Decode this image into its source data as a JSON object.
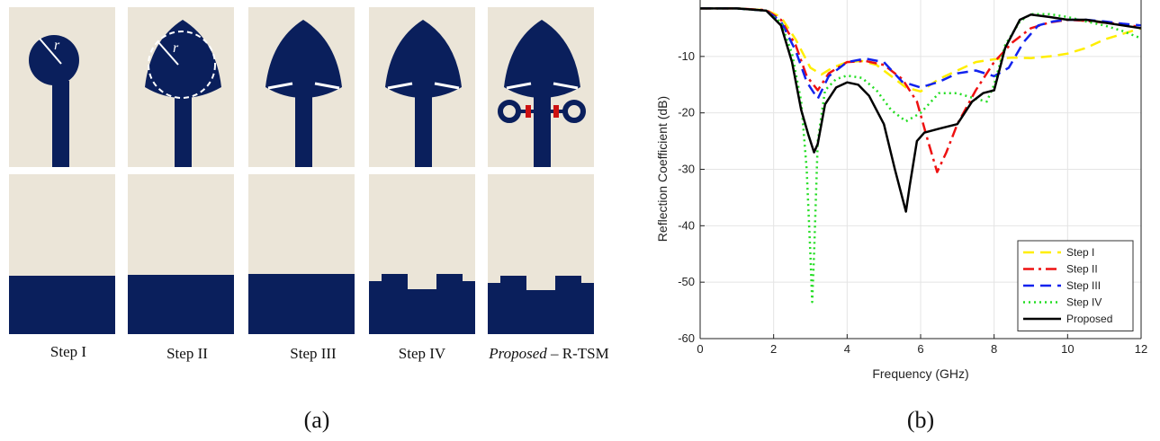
{
  "panel_a": {
    "caption": "(a)",
    "radius_label": "r",
    "steps": [
      {
        "label": "Step I",
        "italic": ""
      },
      {
        "label": "Step II",
        "italic": ""
      },
      {
        "label": "Step III",
        "italic": ""
      },
      {
        "label": "Step IV",
        "italic": ""
      },
      {
        "label": " – R-TSM",
        "italic": "Proposed"
      }
    ],
    "colors": {
      "background": "#ebe5d8",
      "metal": "#0a1f5c",
      "resistor": "#cc1111",
      "slot": "#ffffff"
    }
  },
  "panel_b": {
    "caption": "(b)",
    "chart_data": {
      "type": "line",
      "xlabel": "Frequency (GHz)",
      "ylabel": "Reflection Coefficient (dB)",
      "xlim": [
        0,
        12
      ],
      "ylim": [
        -60,
        0
      ],
      "xticks": [
        0,
        2,
        4,
        6,
        8,
        10,
        12
      ],
      "yticks": [
        -60,
        -50,
        -40,
        -30,
        -20,
        -10
      ],
      "grid": true,
      "legend_position": "bottom-right",
      "series": [
        {
          "name": "Step I",
          "color": "#ffee00",
          "dash": "dashed",
          "x": [
            0,
            1,
            1.8,
            2.2,
            2.6,
            3.0,
            3.3,
            3.6,
            4.0,
            4.4,
            4.8,
            5.2,
            5.6,
            6.0,
            6.5,
            7.0,
            7.5,
            8.0,
            8.5,
            9.0,
            9.5,
            10.0,
            10.5,
            11.0,
            11.5,
            12.0
          ],
          "y": [
            -1.5,
            -1.5,
            -1.8,
            -3.0,
            -7.0,
            -12.0,
            -13.2,
            -12.0,
            -11.0,
            -10.8,
            -11.5,
            -13.5,
            -15.5,
            -16.2,
            -14.0,
            -12.5,
            -11.0,
            -10.5,
            -10.2,
            -10.3,
            -10.0,
            -9.5,
            -8.5,
            -7.0,
            -6.0,
            -5.0
          ]
        },
        {
          "name": "Step II",
          "color": "#ee1111",
          "dash": "dashdot",
          "x": [
            0,
            1,
            1.8,
            2.2,
            2.6,
            2.9,
            3.2,
            3.5,
            4.0,
            4.5,
            5.0,
            5.5,
            5.9,
            6.2,
            6.45,
            6.7,
            7.0,
            7.5,
            8.0,
            8.5,
            9.0,
            9.5,
            10.0,
            10.5,
            11.0,
            11.5,
            12.0
          ],
          "y": [
            -1.5,
            -1.5,
            -1.8,
            -3.5,
            -8.0,
            -13.5,
            -16.0,
            -13.0,
            -11.0,
            -10.8,
            -11.5,
            -14.0,
            -18.0,
            -25.0,
            -30.5,
            -27.0,
            -22.0,
            -16.0,
            -11.0,
            -7.5,
            -5.0,
            -4.0,
            -3.5,
            -3.7,
            -4.0,
            -4.3,
            -4.8
          ]
        },
        {
          "name": "Step III",
          "color": "#1122ee",
          "dash": "dashed",
          "x": [
            0,
            1,
            1.8,
            2.2,
            2.6,
            2.9,
            3.2,
            3.5,
            4.0,
            4.5,
            5.0,
            5.5,
            6.0,
            6.5,
            7.0,
            7.5,
            8.0,
            8.4,
            8.8,
            9.2,
            9.6,
            10.0,
            10.5,
            11.0,
            11.5,
            12.0
          ],
          "y": [
            -1.5,
            -1.5,
            -1.9,
            -3.8,
            -9.0,
            -14.5,
            -17.5,
            -13.5,
            -11.0,
            -10.4,
            -11.0,
            -14.5,
            -15.5,
            -14.5,
            -13.0,
            -12.5,
            -13.5,
            -12.0,
            -7.5,
            -4.5,
            -3.8,
            -3.5,
            -3.5,
            -3.8,
            -4.2,
            -4.5
          ]
        },
        {
          "name": "Step IV",
          "color": "#22dd22",
          "dash": "dotted",
          "x": [
            0,
            1,
            1.8,
            2.2,
            2.5,
            2.75,
            2.9,
            3.0,
            3.05,
            3.1,
            3.2,
            3.4,
            3.7,
            4.0,
            4.4,
            4.8,
            5.2,
            5.6,
            6.0,
            6.5,
            7.0,
            7.5,
            7.8,
            8.0,
            8.3,
            8.7,
            9.0,
            9.5,
            10.0,
            10.5,
            11.0,
            11.5,
            12.0
          ],
          "y": [
            -1.5,
            -1.5,
            -1.9,
            -4.0,
            -9.5,
            -18.0,
            -30.0,
            -45.0,
            -53.5,
            -45.0,
            -25.0,
            -16.0,
            -14.0,
            -13.4,
            -13.8,
            -16.0,
            -19.5,
            -21.5,
            -20.0,
            -16.5,
            -16.5,
            -17.5,
            -18.0,
            -15.0,
            -8.0,
            -3.8,
            -2.5,
            -2.5,
            -3.0,
            -3.8,
            -4.5,
            -5.5,
            -6.8
          ]
        },
        {
          "name": "Proposed",
          "color": "#000000",
          "dash": "solid",
          "x": [
            0,
            1,
            1.8,
            2.2,
            2.5,
            2.75,
            2.95,
            3.1,
            3.2,
            3.4,
            3.7,
            4.0,
            4.3,
            4.6,
            5.0,
            5.3,
            5.5,
            5.6,
            5.7,
            5.9,
            6.1,
            6.5,
            7.0,
            7.4,
            7.7,
            8.0,
            8.3,
            8.7,
            9.0,
            9.5,
            10.0,
            10.5,
            11.0,
            11.5,
            12.0
          ],
          "y": [
            -1.5,
            -1.5,
            -1.9,
            -4.5,
            -11.0,
            -19.5,
            -24.0,
            -27.0,
            -25.5,
            -18.5,
            -15.5,
            -14.6,
            -15.0,
            -17.0,
            -22.0,
            -30.0,
            -35.0,
            -37.5,
            -33.0,
            -25.0,
            -23.5,
            -22.8,
            -22.0,
            -18.0,
            -16.5,
            -16.0,
            -8.5,
            -3.5,
            -2.6,
            -3.0,
            -3.5,
            -3.5,
            -4.0,
            -4.5,
            -5.0
          ]
        }
      ]
    }
  }
}
